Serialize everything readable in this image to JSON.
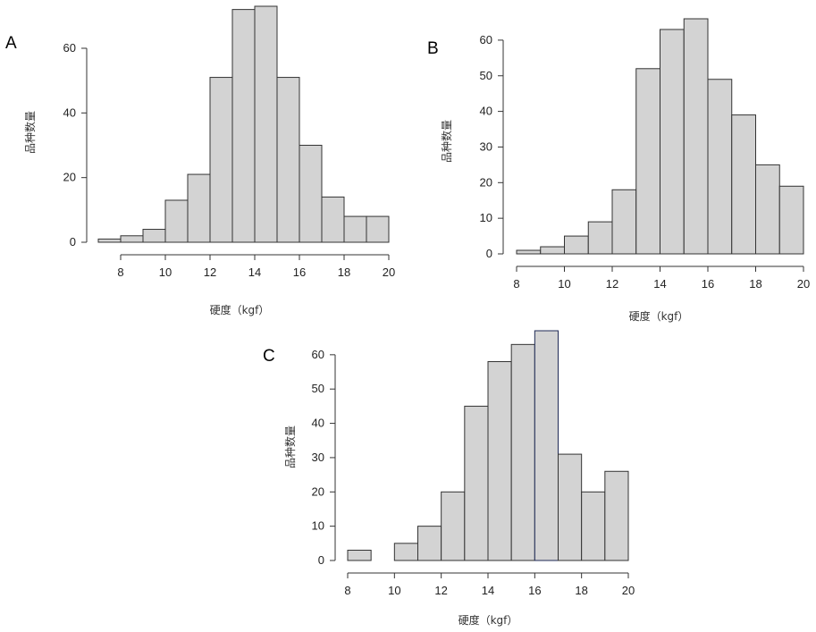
{
  "chart_data": [
    {
      "type": "bar",
      "panel": "A",
      "xlabel": "硬度（kgf）",
      "ylabel": "品种数量",
      "bins": [
        [
          7,
          8
        ],
        [
          8,
          9
        ],
        [
          9,
          10
        ],
        [
          10,
          11
        ],
        [
          11,
          12
        ],
        [
          12,
          13
        ],
        [
          13,
          14
        ],
        [
          14,
          15
        ],
        [
          15,
          16
        ],
        [
          16,
          17
        ],
        [
          17,
          18
        ],
        [
          18,
          19
        ],
        [
          19,
          20
        ]
      ],
      "values": [
        1,
        2,
        4,
        13,
        21,
        51,
        72,
        73,
        51,
        30,
        14,
        8,
        8
      ],
      "xticks": [
        8,
        10,
        12,
        14,
        16,
        18,
        20
      ],
      "yticks": [
        0,
        20,
        40,
        60
      ],
      "xlim": [
        7,
        20
      ],
      "ylim": [
        0,
        73
      ]
    },
    {
      "type": "bar",
      "panel": "B",
      "xlabel": "硬度（kgf）",
      "ylabel": "品种数量",
      "bins": [
        [
          8,
          9
        ],
        [
          9,
          10
        ],
        [
          10,
          11
        ],
        [
          11,
          12
        ],
        [
          12,
          13
        ],
        [
          13,
          14
        ],
        [
          14,
          15
        ],
        [
          15,
          16
        ],
        [
          16,
          17
        ],
        [
          17,
          18
        ],
        [
          18,
          19
        ],
        [
          19,
          20
        ]
      ],
      "values": [
        1,
        2,
        5,
        9,
        18,
        52,
        63,
        66,
        49,
        39,
        25,
        19
      ],
      "xticks": [
        8,
        10,
        12,
        14,
        16,
        18,
        20
      ],
      "yticks": [
        0,
        10,
        20,
        30,
        40,
        50,
        60
      ],
      "xlim": [
        8,
        20
      ],
      "ylim": [
        0,
        66
      ]
    },
    {
      "type": "bar",
      "panel": "C",
      "xlabel": "硬度（kgf）",
      "ylabel": "品种数量",
      "bins": [
        [
          8,
          9
        ],
        [
          9,
          10
        ],
        [
          10,
          11
        ],
        [
          11,
          12
        ],
        [
          12,
          13
        ],
        [
          13,
          14
        ],
        [
          14,
          15
        ],
        [
          15,
          16
        ],
        [
          16,
          17
        ],
        [
          17,
          18
        ],
        [
          18,
          19
        ],
        [
          19,
          20
        ]
      ],
      "values": [
        3,
        0,
        5,
        10,
        20,
        45,
        58,
        63,
        67,
        31,
        20,
        26
      ],
      "highlight_bin": 8,
      "xticks": [
        8,
        10,
        12,
        14,
        16,
        18,
        20
      ],
      "yticks": [
        0,
        10,
        20,
        30,
        40,
        50,
        60
      ],
      "xlim": [
        8,
        20
      ],
      "ylim": [
        0,
        67
      ]
    }
  ]
}
